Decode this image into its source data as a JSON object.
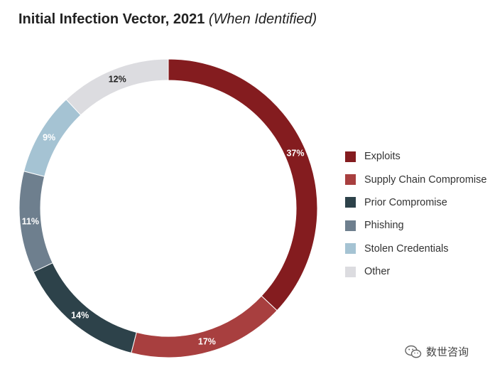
{
  "header": {
    "title": "Initial Infection Vector, 2021",
    "subtitle": "(When Identified)"
  },
  "chart_data": {
    "type": "pie",
    "variant": "donut",
    "title": "Initial Infection Vector, 2021",
    "subtitle": "(When Identified)",
    "legend_position": "right",
    "categories": [
      "Exploits",
      "Supply Chain Compromise",
      "Prior Compromise",
      "Phishing",
      "Stolen Credentials",
      "Other"
    ],
    "values": [
      37,
      17,
      14,
      11,
      9,
      12
    ],
    "labels": [
      "37%",
      "17%",
      "14%",
      "11%",
      "9%",
      "12%"
    ],
    "colors": [
      "#841c1f",
      "#a83f3f",
      "#2d424a",
      "#6e7f8e",
      "#a5c3d3",
      "#dcdce0"
    ]
  },
  "watermark": {
    "text": "数世咨询",
    "icon": "wechat-icon"
  }
}
